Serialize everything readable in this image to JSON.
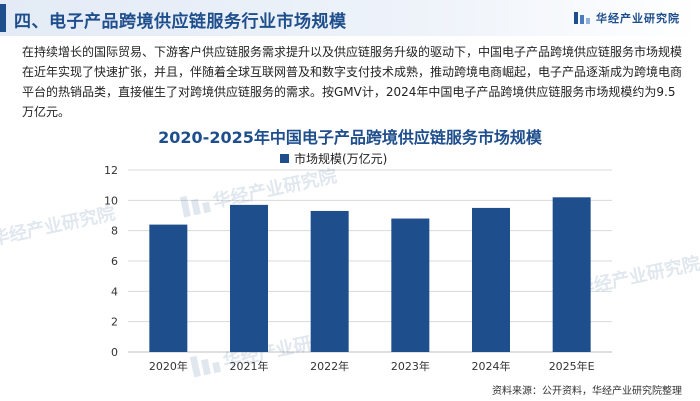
{
  "header": {
    "title": "四、电子产品跨境供应链服务行业市场规模",
    "brand": "华经产业研究院"
  },
  "intro": "在持续增长的国际贸易、下游客户供应链服务需求提升以及供应链服务升级的驱动下，中国电子产品跨境供应链服务市场规模在近年实现了快速扩张，并且，伴随着全球互联网普及和数字支付技术成熟，推动跨境电商崛起，电子产品逐渐成为跨境电商平台的热销品类，直接催生了对跨境供应链服务的需求。按GMV计，2024年中国电子产品跨境供应链服务市场规模约为9.5万亿元。",
  "watermark_text": "华经产业研究院",
  "colors": {
    "accent": "#1f4e8c",
    "bar": "#1f4e8c",
    "grid": "#d9d9d9"
  },
  "chart_data": {
    "type": "bar",
    "title": "2020-2025年中国电子产品跨境供应链服务市场规模",
    "categories": [
      "2020年",
      "2021年",
      "2022年",
      "2023年",
      "2024年",
      "2025年E"
    ],
    "series": [
      {
        "name": "市场规模(万亿元)",
        "values": [
          8.4,
          9.7,
          9.3,
          8.8,
          9.5,
          10.2
        ]
      }
    ],
    "yticks": [
      "0",
      "2",
      "4",
      "6",
      "8",
      "10",
      "12"
    ],
    "ylim": [
      0,
      12
    ],
    "grid": true,
    "legend_position": "top-center"
  },
  "source": "资料来源：公开资料，华经产业研究院整理"
}
